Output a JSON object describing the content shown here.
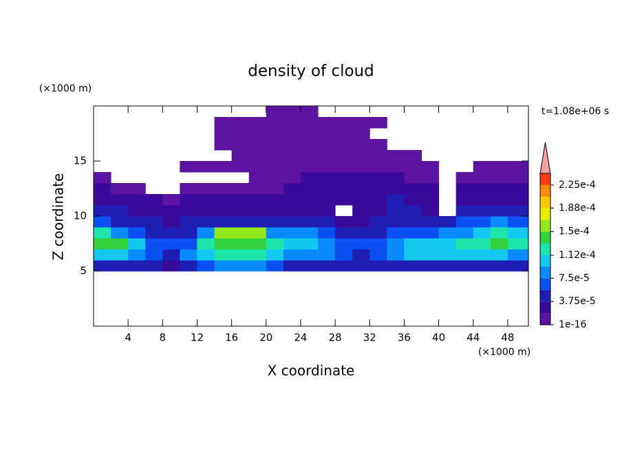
{
  "chart_data": {
    "type": "contour",
    "title": "density of cloud",
    "time_label": "t=1.08e+06 s",
    "xlabel": "X coordinate",
    "ylabel": "Z coordinate",
    "x_unit": "(×1000 m)",
    "y_unit": "(×1000 m)",
    "xlim": [
      0,
      50.4
    ],
    "ylim": [
      0,
      20
    ],
    "xticks": [
      4,
      8,
      12,
      16,
      20,
      24,
      28,
      32,
      36,
      40,
      44,
      48
    ],
    "yticks": [
      5,
      10,
      15
    ],
    "x_edges": [
      0,
      2,
      4,
      6,
      8,
      10,
      12,
      14,
      16,
      18,
      20,
      22,
      24,
      26,
      28,
      30,
      32,
      34,
      36,
      38,
      40,
      42,
      44,
      46,
      48,
      50.4
    ],
    "z_edges": [
      5,
      6,
      7,
      8,
      9,
      10,
      11,
      12,
      13,
      14,
      15,
      16,
      17,
      18,
      19,
      20
    ],
    "values": [
      [
        5e-05,
        5e-05,
        4e-05,
        4e-05,
        3e-05,
        4e-05,
        6e-05,
        8e-05,
        8e-05,
        8e-05,
        7e-05,
        5e-05,
        5e-05,
        5e-05,
        4e-05,
        4e-05,
        4e-05,
        4e-05,
        5e-05,
        5e-05,
        5e-05,
        5e-05,
        5e-05,
        5e-05,
        4e-05
      ],
      [
        0.00011,
        0.00011,
        9e-05,
        6e-05,
        5e-05,
        8e-05,
        0.00011,
        0.00012,
        0.00012,
        0.00012,
        0.00011,
        9e-05,
        9e-05,
        8e-05,
        6e-05,
        5e-05,
        6e-05,
        9e-05,
        0.00011,
        0.00011,
        0.0001,
        0.0001,
        0.0001,
        0.0001,
        9e-05
      ],
      [
        0.000145,
        0.00014,
        0.0001,
        7e-05,
        6e-05,
        7e-05,
        0.00012,
        0.00014,
        0.000145,
        0.00014,
        0.00012,
        0.00011,
        0.00011,
        9e-05,
        7e-05,
        6e-05,
        6e-05,
        9e-05,
        0.0001,
        0.0001,
        0.00011,
        0.00012,
        0.00013,
        0.000135,
        0.00013
      ],
      [
        0.00012,
        9e-05,
        6e-05,
        5e-05,
        4e-05,
        5e-05,
        8e-05,
        0.00015,
        0.00016,
        0.00015,
        9e-05,
        8e-05,
        9e-05,
        7e-05,
        5e-05,
        5e-05,
        5e-05,
        6e-05,
        7e-05,
        6e-05,
        8e-05,
        9e-05,
        0.00011,
        0.000115,
        0.00011
      ],
      [
        6e-05,
        5e-05,
        4e-05,
        4e-05,
        3e-05,
        4e-05,
        4e-05,
        5e-05,
        5e-05,
        5e-05,
        4e-05,
        5e-05,
        5e-05,
        4e-05,
        3e-05,
        3e-05,
        4e-05,
        4e-05,
        5e-05,
        5e-05,
        5e-05,
        6e-05,
        7e-05,
        8e-05,
        7e-05
      ],
      [
        4e-05,
        4e-05,
        3e-05,
        3e-05,
        3e-05,
        3e-05,
        3e-05,
        3e-05,
        3e-05,
        3e-05,
        3e-05,
        3e-05,
        3e-05,
        3e-05,
        null,
        3e-05,
        3e-05,
        4e-05,
        4e-05,
        3e-05,
        null,
        4e-05,
        5e-05,
        5e-05,
        5e-05
      ],
      [
        3e-05,
        2.5e-05,
        2e-05,
        2e-05,
        1e-05,
        2e-05,
        2e-05,
        2e-05,
        2e-05,
        2e-05,
        2e-05,
        2e-05,
        2e-05,
        2e-05,
        2e-05,
        2.5e-05,
        3e-05,
        4e-05,
        3e-05,
        2e-05,
        null,
        3e-05,
        3e-05,
        3e-05,
        3e-05
      ],
      [
        2e-05,
        1e-05,
        1e-05,
        null,
        null,
        1e-05,
        1e-05,
        1e-05,
        1e-05,
        1e-05,
        1.5e-05,
        2e-05,
        2e-05,
        2e-05,
        2e-05,
        2e-05,
        2e-05,
        2e-05,
        2e-05,
        2e-05,
        null,
        2e-05,
        2e-05,
        2e-05,
        2e-05
      ],
      [
        1e-05,
        null,
        null,
        null,
        null,
        null,
        null,
        null,
        null,
        1e-05,
        1e-05,
        1e-05,
        2e-05,
        2e-05,
        2e-05,
        2e-05,
        2e-05,
        2e-05,
        1e-05,
        1e-05,
        null,
        1e-05,
        1e-05,
        1e-05,
        1e-05
      ],
      [
        null,
        null,
        null,
        null,
        null,
        1e-05,
        1e-05,
        1e-05,
        1e-05,
        1e-05,
        1e-05,
        1e-05,
        1e-05,
        1e-05,
        1e-05,
        1e-05,
        1e-05,
        1e-05,
        1e-05,
        1e-05,
        null,
        null,
        1e-05,
        1e-05,
        1e-05
      ],
      [
        null,
        null,
        null,
        null,
        null,
        null,
        null,
        null,
        1e-05,
        1e-05,
        1e-05,
        1e-05,
        1e-05,
        1e-05,
        1e-05,
        1e-05,
        1e-05,
        1e-05,
        1e-05,
        null,
        null,
        null,
        null,
        null,
        null
      ],
      [
        null,
        null,
        null,
        null,
        null,
        null,
        null,
        1e-05,
        1e-05,
        1e-05,
        1e-05,
        1e-05,
        1e-05,
        1e-05,
        1e-05,
        1e-05,
        1e-05,
        null,
        null,
        null,
        null,
        null,
        null,
        null,
        null
      ],
      [
        null,
        null,
        null,
        null,
        null,
        null,
        null,
        1e-05,
        1e-05,
        1e-05,
        1e-05,
        1e-05,
        1e-05,
        1e-05,
        1e-05,
        1e-05,
        null,
        null,
        null,
        null,
        null,
        null,
        null,
        null,
        null
      ],
      [
        null,
        null,
        null,
        null,
        null,
        null,
        null,
        1e-05,
        1e-05,
        1e-05,
        1e-05,
        1e-05,
        1e-05,
        1e-05,
        1e-05,
        1e-05,
        1e-05,
        null,
        null,
        null,
        null,
        null,
        null,
        null,
        null
      ],
      [
        null,
        null,
        null,
        null,
        null,
        null,
        null,
        null,
        null,
        null,
        1e-05,
        1e-05,
        1e-05,
        null,
        null,
        null,
        null,
        null,
        null,
        null,
        null,
        null,
        null,
        null,
        null
      ]
    ],
    "colorbar": {
      "levels": [
        1e-16,
        1.875e-05,
        3.75e-05,
        5.625e-05,
        7.5e-05,
        9.375e-05,
        0.0001125,
        0.00013125,
        0.00015,
        0.00016875,
        0.0001875,
        0.00020625,
        0.000225,
        0.00024375
      ],
      "colors": [
        "#5a14a0",
        "#3a0a9a",
        "#1e1eb4",
        "#0a50f0",
        "#0a8cff",
        "#14c8f0",
        "#1ee6aa",
        "#32d23c",
        "#96e61e",
        "#e6f000",
        "#ffc800",
        "#ff8c00",
        "#ff3c14"
      ],
      "extend_color": "#f5a0a0",
      "ticks": [
        1e-16,
        {
          "value": 3.75e-05,
          "label": "3.75e-5"
        },
        {
          "value": 7.5e-05,
          "label": "7.5e-5"
        },
        {
          "value": 0.000112,
          "label": "1.12e-4"
        },
        {
          "value": 0.00015,
          "label": "1.5e-4"
        },
        {
          "value": 0.000188,
          "label": "1.88e-4"
        },
        {
          "value": 0.000225,
          "label": "2.25e-4"
        }
      ]
    }
  }
}
